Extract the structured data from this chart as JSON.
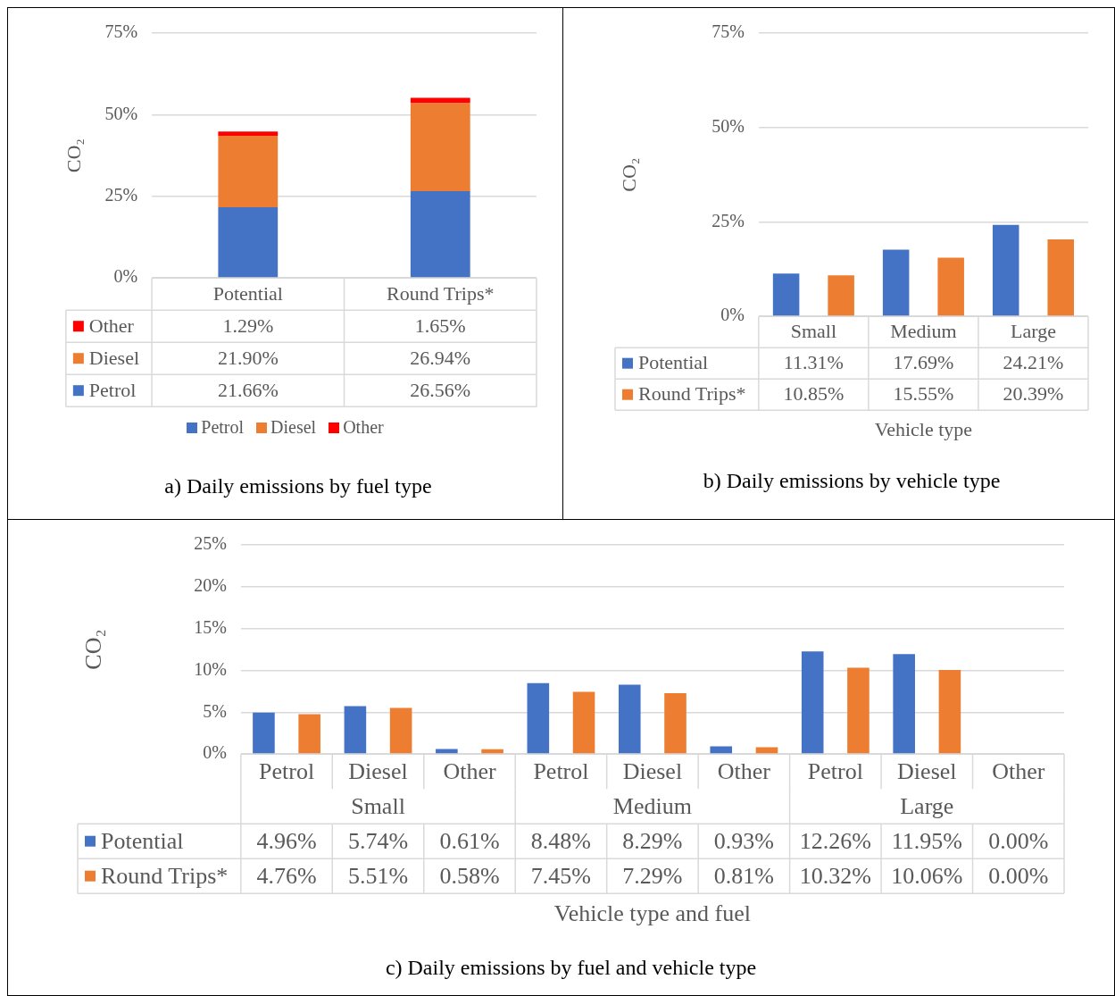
{
  "chart_data": [
    {
      "type": "bar",
      "title": "a) Daily emissions by fuel type",
      "ylabel": "CO₂",
      "stacked": true,
      "legend": "bottom",
      "grid": "y",
      "categories": [
        "Potential",
        "Round Trips*"
      ],
      "series": [
        {
          "name": "Petrol",
          "color": "#4472c4",
          "values": [
            21.66,
            26.56
          ],
          "value_labels": [
            "21.66%",
            "26.56%"
          ]
        },
        {
          "name": "Diesel",
          "color": "#ed7d31",
          "values": [
            21.9,
            26.94
          ],
          "value_labels": [
            "21.90%",
            "26.94%"
          ]
        },
        {
          "name": "Other",
          "color": "#ff0000",
          "values": [
            1.29,
            1.65
          ],
          "value_labels": [
            "1.29%",
            "1.65%"
          ]
        }
      ],
      "ylim": [
        0,
        75
      ],
      "yticks": [
        {
          "value": 0,
          "label": "0%"
        },
        {
          "value": 25,
          "label": "25%"
        },
        {
          "value": 50,
          "label": "50%"
        },
        {
          "value": 75,
          "label": "75%"
        }
      ]
    },
    {
      "type": "bar",
      "title": "b) Daily emissions by vehicle type",
      "ylabel": "CO₂",
      "xlabel": "Vehicle type",
      "grid": "y",
      "legend": "bottom left",
      "categories": [
        "Small",
        "Medium",
        "Large"
      ],
      "series": [
        {
          "name": "Potential",
          "color": "#4472c4",
          "values": [
            11.31,
            17.69,
            24.21
          ],
          "value_labels": [
            "11.31%",
            "17.69%",
            "24.21%"
          ]
        },
        {
          "name": "Round Trips*",
          "color": "#ed7d31",
          "values": [
            10.85,
            15.55,
            20.39
          ],
          "value_labels": [
            "10.85%",
            "15.55%",
            "20.39%"
          ]
        }
      ],
      "ylim": [
        0,
        75
      ],
      "yticks": [
        {
          "value": 0,
          "label": "0%"
        },
        {
          "value": 25,
          "label": "25%"
        },
        {
          "value": 50,
          "label": "50%"
        },
        {
          "value": 75,
          "label": "75%"
        }
      ]
    },
    {
      "type": "bar",
      "title": "c) Daily emissions by fuel and vehicle type",
      "ylabel": "CO₂",
      "xlabel": "Vehicle type and fuel",
      "grid": "y",
      "legend": "bottom left",
      "categories": [
        "Petrol",
        "Diesel",
        "Other",
        "Petrol",
        "Diesel",
        "Other",
        "Petrol",
        "Diesel",
        "Other"
      ],
      "annotations": [
        "Small",
        "Medium",
        "Large"
      ],
      "series": [
        {
          "name": "Potential",
          "color": "#4472c4",
          "values": [
            4.96,
            5.74,
            0.61,
            8.48,
            8.29,
            0.93,
            12.26,
            11.95,
            0.0
          ],
          "value_labels": [
            "4.96%",
            "5.74%",
            "0.61%",
            "8.48%",
            "8.29%",
            "0.93%",
            "12.26%",
            "11.95%",
            "0.00%"
          ]
        },
        {
          "name": "Round Trips*",
          "color": "#ed7d31",
          "values": [
            4.76,
            5.51,
            0.58,
            7.45,
            7.29,
            0.81,
            10.32,
            10.06,
            0.0
          ],
          "value_labels": [
            "4.76%",
            "5.51%",
            "0.58%",
            "7.45%",
            "7.29%",
            "0.81%",
            "10.32%",
            "10.06%",
            "0.00%"
          ]
        }
      ],
      "ylim": [
        0,
        25
      ],
      "yticks": [
        {
          "value": 0,
          "label": "0%"
        },
        {
          "value": 5,
          "label": "5%"
        },
        {
          "value": 10,
          "label": "10%"
        },
        {
          "value": 15,
          "label": "15%"
        },
        {
          "value": 20,
          "label": "20%"
        },
        {
          "value": 25,
          "label": "25%"
        }
      ]
    }
  ]
}
